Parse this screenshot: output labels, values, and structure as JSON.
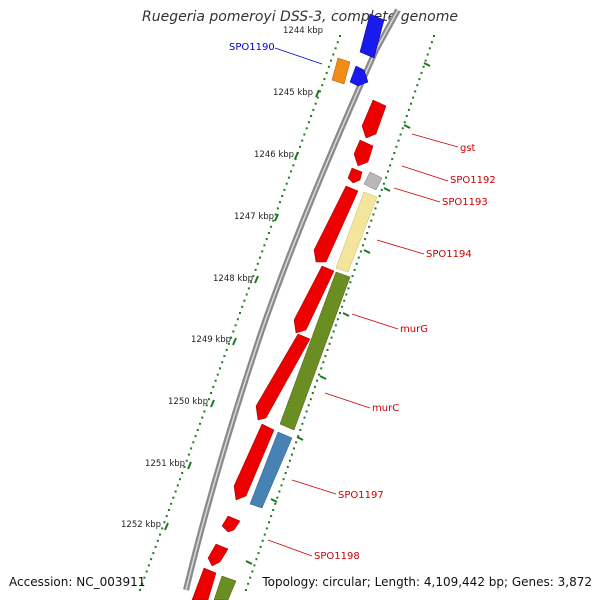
{
  "title": "Ruegeria pomeroyi DSS-3, complete genome",
  "footer": {
    "accession": "Accession: NC_003911",
    "summary": "Topology: circular; Length: 4,109,442 bp; Genes: 3,872"
  },
  "scale": {
    "unit": "kbp",
    "ticks": [
      "1244 kbp",
      "1245 kbp",
      "1246 kbp",
      "1247 kbp",
      "1248 kbp",
      "1249 kbp",
      "1250 kbp",
      "1251 kbp",
      "1252 kbp"
    ]
  },
  "colors": {
    "cds": "#ee0000",
    "rrna": "#1a1aee",
    "trna": "#f28c16",
    "cog_gray": "#b8b8b8",
    "cog_yellow": "#f3e69c",
    "cog_green": "#6b8e23",
    "cog_blue": "#4682b4",
    "label_red": "#cc0000",
    "label_blue": "#0000cc",
    "tick_green": "#1c7a1c",
    "backbone": "#808080"
  },
  "genes": [
    {
      "label": "SPO1190",
      "color": "label_blue"
    },
    {
      "label": "gst",
      "color": "label_red"
    },
    {
      "label": "SPO1192",
      "color": "label_red"
    },
    {
      "label": "SPO1193",
      "color": "label_red"
    },
    {
      "label": "SPO1194",
      "color": "label_red"
    },
    {
      "label": "murG",
      "color": "label_red"
    },
    {
      "label": "murC",
      "color": "label_red"
    },
    {
      "label": "SPO1197",
      "color": "label_red"
    },
    {
      "label": "SPO1198",
      "color": "label_red"
    }
  ]
}
